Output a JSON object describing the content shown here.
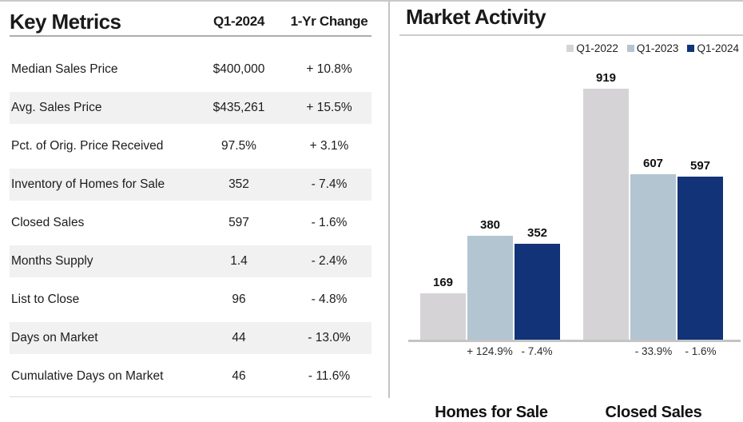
{
  "key_metrics": {
    "title": "Key Metrics",
    "columns": {
      "period": "Q1-2024",
      "change": "1-Yr Change"
    },
    "rows": [
      {
        "label": "Median Sales Price",
        "value": "$400,000",
        "change": "+ 10.8%"
      },
      {
        "label": "Avg. Sales Price",
        "value": "$435,261",
        "change": "+ 15.5%"
      },
      {
        "label": "Pct. of Orig. Price Received",
        "value": "97.5%",
        "change": "+ 3.1%"
      },
      {
        "label": "Inventory of Homes for Sale",
        "value": "352",
        "change": "- 7.4%"
      },
      {
        "label": "Closed Sales",
        "value": "597",
        "change": "- 1.6%"
      },
      {
        "label": "Months Supply",
        "value": "1.4",
        "change": "- 2.4%"
      },
      {
        "label": "List to Close",
        "value": "96",
        "change": "- 4.8%"
      },
      {
        "label": "Days on Market",
        "value": "44",
        "change": "- 13.0%"
      },
      {
        "label": "Cumulative Days on Market",
        "value": "46",
        "change": "- 11.6%"
      }
    ]
  },
  "chart_data": {
    "type": "bar",
    "title": "Market Activity",
    "categories": [
      "Homes for Sale",
      "Closed Sales"
    ],
    "series": [
      {
        "name": "Q1-2022",
        "values": [
          169,
          919
        ],
        "color": "#d6d3d7"
      },
      {
        "name": "Q1-2023",
        "values": [
          380,
          607
        ],
        "color": "#b3c5d1"
      },
      {
        "name": "Q1-2024",
        "values": [
          352,
          597
        ],
        "color": "#123377"
      }
    ],
    "change_labels": [
      {
        "group": "Homes for Sale",
        "q1_2023": "+ 124.9%",
        "q1_2024": "- 7.4%"
      },
      {
        "group": "Closed Sales",
        "q1_2023": "- 33.9%",
        "q1_2024": "- 1.6%"
      }
    ],
    "ylim": [
      0,
      919
    ],
    "grid": false,
    "value_labels_shown": true,
    "legend_position": "top-right",
    "colors": {
      "axis_line": "#c4c4c4",
      "stripe": "#f2f1f2"
    }
  }
}
